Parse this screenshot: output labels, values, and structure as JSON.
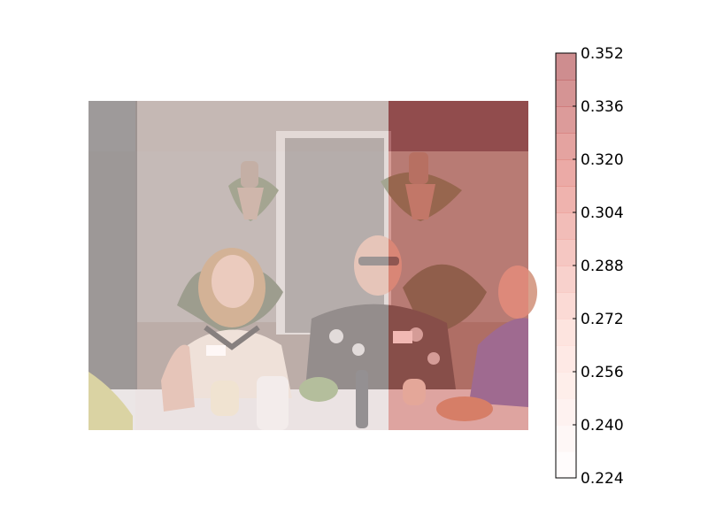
{
  "chart_data": {
    "type": "heatmap",
    "title": "",
    "xlabel": "",
    "ylabel": "",
    "background": "photo of people seated at a dinner table with a floral wall decoration behind them",
    "grid": false,
    "cells": [
      {
        "row": 0,
        "col": 0,
        "value": 0.228
      },
      {
        "row": 0,
        "col": 1,
        "value": 0.24
      },
      {
        "row": 0,
        "col": 2,
        "value": 0.352
      },
      {
        "row": 1,
        "col": 0,
        "value": 0.232
      },
      {
        "row": 1,
        "col": 1,
        "value": 0.236
      },
      {
        "row": 1,
        "col": 2,
        "value": 0.304
      }
    ],
    "colorbar": {
      "min": 0.224,
      "max": 0.352,
      "colormap": "Reds",
      "alpha": 0.5,
      "ticks": [
        "0.352",
        "0.336",
        "0.320",
        "0.304",
        "0.288",
        "0.272",
        "0.256",
        "0.240",
        "0.224"
      ],
      "location": "right",
      "levels": 16
    }
  }
}
